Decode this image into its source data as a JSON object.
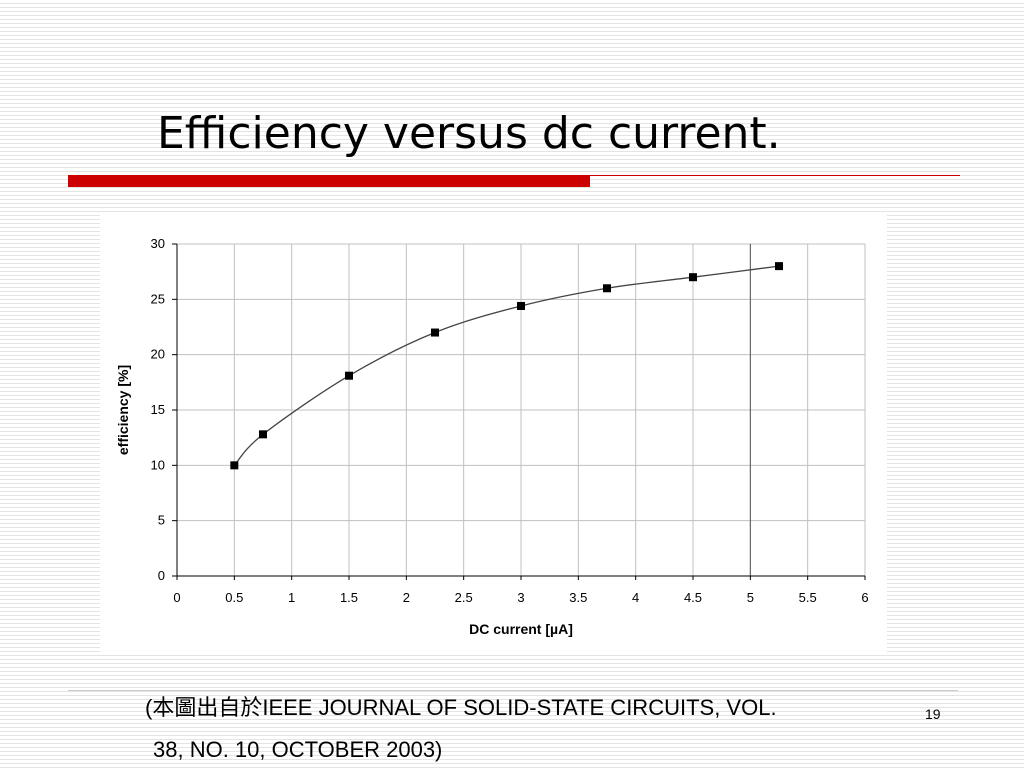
{
  "slide": {
    "title": "Efficiency versus dc current.",
    "caption_line1": "(本圖出自於IEEE JOURNAL OF SOLID-STATE CIRCUITS, VOL.",
    "caption_line2": "38, NO. 10, OCTOBER 2003)",
    "page_number": "19"
  },
  "colors": {
    "accent_red": "#cc0000",
    "grid": "#c0c0c0",
    "series": "#000000"
  },
  "chart_data": {
    "type": "line",
    "title": "",
    "xlabel": "DC current [µA]",
    "ylabel": "efficiency [%]",
    "xlim": [
      0,
      6
    ],
    "ylim": [
      0,
      30
    ],
    "x_ticks": [
      "0",
      "0.5",
      "1",
      "1.5",
      "2",
      "2.5",
      "3",
      "3.5",
      "4",
      "4.5",
      "5",
      "5.5",
      "6"
    ],
    "y_ticks": [
      "0",
      "5",
      "10",
      "15",
      "20",
      "25",
      "30"
    ],
    "grid": true,
    "legend": "none",
    "series": [
      {
        "x": [
          0.5,
          0.75,
          1.5,
          2.25,
          3.0,
          3.75,
          4.5,
          5.25
        ],
        "y": [
          10.0,
          12.8,
          18.1,
          22.0,
          24.4,
          26.0,
          27.0,
          28.0
        ]
      }
    ]
  }
}
